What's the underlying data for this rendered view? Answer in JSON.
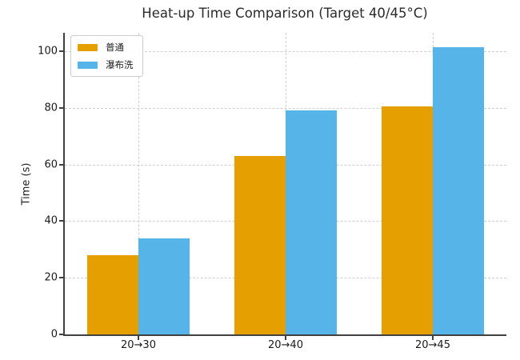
{
  "figure": {
    "background": "#ffffff",
    "spine_color": "#404040",
    "grid_color": "#cfcfcf",
    "text_color": "#1a1a1a"
  },
  "chart_data": {
    "type": "bar",
    "title": "Heat-up Time Comparison (Target 40/45°C)",
    "xlabel": "",
    "ylabel": "Time (s)",
    "categories": [
      "20→30",
      "20→40",
      "20→45"
    ],
    "series": [
      {
        "name": "普通",
        "color": "#E69F00",
        "values": [
          28,
          63,
          80.5
        ]
      },
      {
        "name": "瀑布洗",
        "color": "#56B4E9",
        "values": [
          34,
          79,
          101.5
        ]
      }
    ],
    "ylim": [
      0,
      106.5
    ],
    "yticks": [
      0,
      20,
      40,
      60,
      80,
      100
    ],
    "grid": {
      "horizontal": true,
      "vertical": true,
      "style": "dashed"
    },
    "legend_position": "upper left",
    "bar_group_width_fraction": 0.7
  }
}
